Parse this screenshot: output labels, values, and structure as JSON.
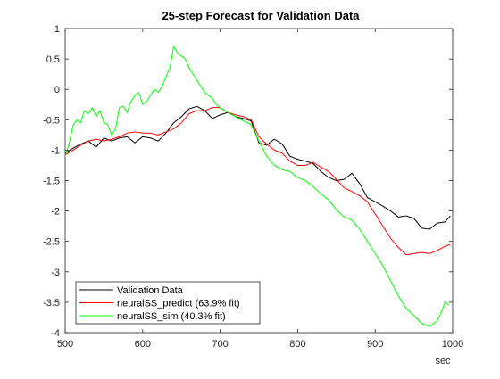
{
  "chart_data": {
    "type": "line",
    "title": "25-step Forecast for Validation Data",
    "xlabel": "sec",
    "ylabel": "",
    "xlim": [
      500,
      1000
    ],
    "ylim": [
      -4,
      1
    ],
    "xticks": [
      500,
      600,
      700,
      800,
      900,
      1000
    ],
    "yticks": [
      1,
      0.5,
      0,
      -0.5,
      -1,
      -1.5,
      -2,
      -2.5,
      -3,
      -3.5,
      -4
    ],
    "grid": false,
    "legend_position": "bottom-left",
    "series": [
      {
        "name": "Validation Data",
        "color": "#000000",
        "x": [
          500,
          510,
          520,
          530,
          540,
          550,
          560,
          570,
          580,
          590,
          600,
          610,
          620,
          630,
          640,
          650,
          660,
          670,
          680,
          690,
          700,
          710,
          720,
          730,
          740,
          750,
          760,
          770,
          780,
          790,
          800,
          810,
          820,
          830,
          840,
          850,
          860,
          870,
          880,
          890,
          900,
          910,
          920,
          930,
          940,
          950,
          960,
          970,
          980,
          990,
          997
        ],
        "y": [
          -1.05,
          -0.97,
          -0.9,
          -0.85,
          -0.95,
          -0.8,
          -0.85,
          -0.8,
          -0.78,
          -0.88,
          -0.78,
          -0.8,
          -0.85,
          -0.72,
          -0.55,
          -0.45,
          -0.32,
          -0.28,
          -0.35,
          -0.48,
          -0.42,
          -0.38,
          -0.45,
          -0.48,
          -0.52,
          -0.88,
          -0.92,
          -0.82,
          -0.9,
          -1.1,
          -1.15,
          -1.18,
          -1.22,
          -1.35,
          -1.45,
          -1.5,
          -1.48,
          -1.38,
          -1.55,
          -1.78,
          -1.85,
          -1.92,
          -2.0,
          -2.1,
          -2.08,
          -2.12,
          -2.28,
          -2.3,
          -2.2,
          -2.18,
          -2.08
        ]
      },
      {
        "name": "neuralSS_predict  (63.9%  fit)",
        "color": "#ff0000",
        "x": [
          500,
          510,
          520,
          530,
          540,
          550,
          560,
          570,
          580,
          590,
          600,
          610,
          620,
          630,
          640,
          650,
          660,
          670,
          680,
          690,
          700,
          710,
          720,
          730,
          740,
          750,
          760,
          770,
          780,
          790,
          800,
          810,
          820,
          830,
          840,
          850,
          860,
          870,
          880,
          890,
          900,
          910,
          920,
          930,
          940,
          950,
          960,
          970,
          980,
          990,
          997
        ],
        "y": [
          -1.08,
          -1.0,
          -0.92,
          -0.85,
          -0.82,
          -0.85,
          -0.82,
          -0.78,
          -0.72,
          -0.7,
          -0.72,
          -0.72,
          -0.75,
          -0.7,
          -0.65,
          -0.55,
          -0.4,
          -0.35,
          -0.35,
          -0.3,
          -0.3,
          -0.38,
          -0.42,
          -0.45,
          -0.5,
          -0.78,
          -0.9,
          -1.0,
          -1.05,
          -1.18,
          -1.25,
          -1.25,
          -1.2,
          -1.28,
          -1.35,
          -1.48,
          -1.62,
          -1.68,
          -1.75,
          -1.85,
          -2.05,
          -2.25,
          -2.45,
          -2.6,
          -2.72,
          -2.7,
          -2.68,
          -2.7,
          -2.65,
          -2.58,
          -2.55
        ]
      },
      {
        "name": "neuralSS_sim  (40.3%  fit)",
        "color": "#00ff00",
        "x": [
          500,
          505,
          510,
          515,
          520,
          525,
          530,
          535,
          540,
          545,
          550,
          555,
          560,
          565,
          570,
          575,
          580,
          585,
          590,
          595,
          600,
          605,
          610,
          615,
          620,
          625,
          630,
          635,
          640,
          645,
          650,
          655,
          660,
          665,
          670,
          675,
          680,
          685,
          690,
          695,
          700,
          710,
          720,
          730,
          740,
          750,
          760,
          770,
          780,
          790,
          800,
          810,
          820,
          830,
          840,
          850,
          860,
          870,
          880,
          890,
          900,
          910,
          920,
          930,
          940,
          950,
          960,
          970,
          980,
          985,
          990,
          995
        ],
        "y": [
          -1.1,
          -0.9,
          -0.6,
          -0.5,
          -0.55,
          -0.35,
          -0.4,
          -0.3,
          -0.45,
          -0.35,
          -0.55,
          -0.58,
          -0.75,
          -0.65,
          -0.3,
          -0.28,
          -0.38,
          -0.2,
          -0.1,
          -0.05,
          -0.25,
          -0.2,
          -0.1,
          0.0,
          -0.05,
          0.05,
          0.2,
          0.35,
          0.7,
          0.6,
          0.55,
          0.5,
          0.35,
          0.25,
          0.15,
          0.05,
          -0.05,
          -0.1,
          -0.15,
          -0.25,
          -0.3,
          -0.38,
          -0.45,
          -0.52,
          -0.58,
          -0.85,
          -1.1,
          -1.25,
          -1.32,
          -1.35,
          -1.45,
          -1.5,
          -1.6,
          -1.72,
          -1.82,
          -1.98,
          -2.1,
          -2.15,
          -2.3,
          -2.5,
          -2.7,
          -2.9,
          -3.15,
          -3.4,
          -3.6,
          -3.72,
          -3.85,
          -3.9,
          -3.8,
          -3.68,
          -3.5,
          -3.55
        ]
      }
    ]
  }
}
